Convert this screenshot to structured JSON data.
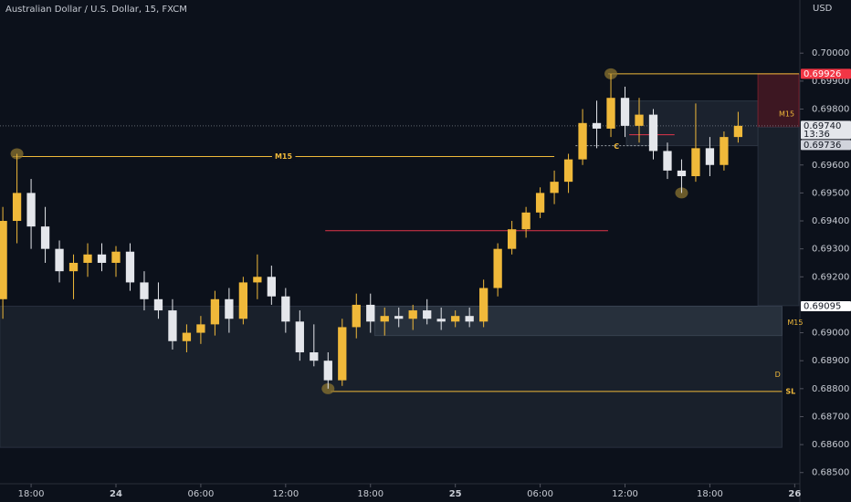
{
  "chart_data": {
    "type": "candlestick",
    "title": "Australian Dollar / U.S. Dollar, 15, FXCM",
    "y_axis_label": "USD",
    "up_color": "#f0b93a",
    "down_color": "#e4e6eb",
    "open": [
      0.6912,
      0.694,
      0.695,
      0.6938,
      0.693,
      0.6922,
      0.6925,
      0.6928,
      0.6925,
      0.6929,
      0.6918,
      0.6912,
      0.6908,
      0.6897,
      0.69,
      0.6903,
      0.6912,
      0.6905,
      0.6918,
      0.692,
      0.6913,
      0.6904,
      0.6893,
      0.689,
      0.6883,
      0.6902,
      0.691,
      0.6904,
      0.6906,
      0.6905,
      0.6908,
      0.6905,
      0.6904,
      0.6906,
      0.6904,
      0.6916,
      0.693,
      0.6937,
      0.6943,
      0.695,
      0.6954,
      0.6962,
      0.6975,
      0.6973,
      0.6984,
      0.6974,
      0.6978,
      0.6965,
      0.6958,
      0.6956,
      0.6966,
      0.696,
      0.697
    ],
    "high": [
      0.6945,
      0.6964,
      0.6955,
      0.6945,
      0.6933,
      0.6928,
      0.6932,
      0.6932,
      0.6931,
      0.6932,
      0.6922,
      0.6918,
      0.6912,
      0.6903,
      0.6906,
      0.6915,
      0.6916,
      0.692,
      0.6928,
      0.6924,
      0.6916,
      0.6908,
      0.6903,
      0.6893,
      0.6905,
      0.6914,
      0.6914,
      0.6909,
      0.6909,
      0.691,
      0.6912,
      0.6909,
      0.6908,
      0.6909,
      0.6919,
      0.6932,
      0.694,
      0.6945,
      0.6952,
      0.6958,
      0.6964,
      0.698,
      0.6983,
      0.69926,
      0.6988,
      0.6984,
      0.698,
      0.6968,
      0.6962,
      0.6982,
      0.697,
      0.6972,
      0.6979
    ],
    "low": [
      0.6905,
      0.6932,
      0.693,
      0.6925,
      0.6918,
      0.6912,
      0.692,
      0.6922,
      0.692,
      0.6915,
      0.6908,
      0.6905,
      0.6894,
      0.6893,
      0.6896,
      0.6899,
      0.69,
      0.6903,
      0.6912,
      0.691,
      0.69,
      0.689,
      0.6888,
      0.688,
      0.6881,
      0.6898,
      0.69,
      0.6899,
      0.6902,
      0.6901,
      0.6903,
      0.6901,
      0.6902,
      0.6902,
      0.6902,
      0.6913,
      0.6928,
      0.6934,
      0.6941,
      0.6946,
      0.695,
      0.696,
      0.6966,
      0.697,
      0.697,
      0.6968,
      0.6962,
      0.6955,
      0.695,
      0.6954,
      0.6956,
      0.6958,
      0.6968
    ],
    "close": [
      0.694,
      0.695,
      0.6938,
      0.693,
      0.6922,
      0.6925,
      0.6928,
      0.6925,
      0.6929,
      0.6918,
      0.6912,
      0.6908,
      0.6897,
      0.69,
      0.6903,
      0.6912,
      0.6905,
      0.6918,
      0.692,
      0.6913,
      0.6904,
      0.6893,
      0.689,
      0.6883,
      0.6902,
      0.691,
      0.6904,
      0.6906,
      0.6905,
      0.6908,
      0.6905,
      0.6904,
      0.6906,
      0.6904,
      0.6916,
      0.693,
      0.6937,
      0.6943,
      0.695,
      0.6954,
      0.6962,
      0.6975,
      0.6973,
      0.6984,
      0.6974,
      0.6978,
      0.6965,
      0.6958,
      0.6956,
      0.6966,
      0.696,
      0.697,
      0.6974
    ],
    "xlim": [
      -0.2,
      56.3
    ],
    "ylim": [
      0.6846,
      0.7019
    ],
    "xticks": [
      {
        "value": 2,
        "label": "18:00"
      },
      {
        "value": 8,
        "label": "24"
      },
      {
        "value": 14,
        "label": "06:00"
      },
      {
        "value": 20,
        "label": "12:00"
      },
      {
        "value": 26,
        "label": "18:00"
      },
      {
        "value": 32,
        "label": "25"
      },
      {
        "value": 38,
        "label": "06:00"
      },
      {
        "value": 44,
        "label": "12:00"
      },
      {
        "value": 50,
        "label": "18:00"
      },
      {
        "value": 56,
        "label": "26"
      }
    ],
    "yticks": [
      {
        "value": 0.7,
        "label": "0.70000"
      },
      {
        "value": 0.699,
        "label": "0.69900"
      },
      {
        "value": 0.698,
        "label": "0.69800"
      },
      {
        "value": 0.696,
        "label": "0.69600"
      },
      {
        "value": 0.695,
        "label": "0.69500"
      },
      {
        "value": 0.694,
        "label": "0.69400"
      },
      {
        "value": 0.693,
        "label": "0.69300"
      },
      {
        "value": 0.692,
        "label": "0.69200"
      },
      {
        "value": 0.69,
        "label": "0.69000"
      },
      {
        "value": 0.689,
        "label": "0.68900"
      },
      {
        "value": 0.688,
        "label": "0.68800"
      },
      {
        "value": 0.687,
        "label": "0.68700"
      },
      {
        "value": 0.686,
        "label": "0.68600"
      },
      {
        "value": 0.685,
        "label": "0.68500"
      }
    ],
    "zones": [
      {
        "low": 0.6859,
        "high": 0.69095,
        "from": -0.2,
        "to": 55.1,
        "color": "#2a3240"
      },
      {
        "label": "M15",
        "low": 0.6899,
        "high": 0.69095,
        "from": 26.3,
        "to": 55.1,
        "color": "#3a4452"
      },
      {
        "low": 0.69669,
        "high": 0.69829,
        "from": 44.1,
        "to": 53.4,
        "color": "#2f3846"
      },
      {
        "label": "M15",
        "low": 0.69735,
        "high": 0.69926,
        "from": 53.4,
        "to": 56.6,
        "color": "#7a1f2c"
      },
      {
        "low": 0.69097,
        "high": 0.69735,
        "from": 53.4,
        "to": 56.6,
        "color": "#2a3240"
      }
    ],
    "levels": [
      {
        "label": "M15",
        "value": 0.6963,
        "from": 0.7,
        "to": 39.0,
        "color": "#f0b93a"
      },
      {
        "value": 0.69365,
        "from": 22.8,
        "to": 42.8,
        "color": "#e0364b"
      },
      {
        "label": "SL",
        "value": 0.6879,
        "from": 23.2,
        "to": 55.1,
        "color": "#f0b93a"
      },
      {
        "value": 0.69926,
        "from": 42.8,
        "to": 56.6,
        "color": "#f0b93a"
      },
      {
        "value": 0.69708,
        "from": 44.3,
        "to": 47.5,
        "color": "#e0364b"
      },
      {
        "label": "C",
        "value": 0.69669,
        "from": 40.5,
        "to": 46.3,
        "color": "#9aa0a8"
      }
    ],
    "notes": [
      {
        "label": "D",
        "value": 0.6885,
        "x": 54.6
      }
    ],
    "markers": [
      {
        "x": 1,
        "value": 0.6964
      },
      {
        "x": 43,
        "value": 0.69926
      },
      {
        "x": 23,
        "value": 0.688
      },
      {
        "x": 48,
        "value": 0.695
      }
    ],
    "badges": [
      {
        "label": "0.69926",
        "value": 0.69926,
        "color": "#f23645",
        "text_color": "#ffffff"
      },
      {
        "label": "0.69740",
        "sub": "13:36",
        "value": 0.6974,
        "color": "#e4e6eb",
        "text_color": "#131722"
      },
      {
        "label": "0.69736",
        "value": 0.69736,
        "color": "#d1d4dc",
        "text_color": "#131722"
      },
      {
        "label": "0.69095",
        "value": 0.69095,
        "color": "#ffffff",
        "text_color": "#131722"
      }
    ]
  }
}
